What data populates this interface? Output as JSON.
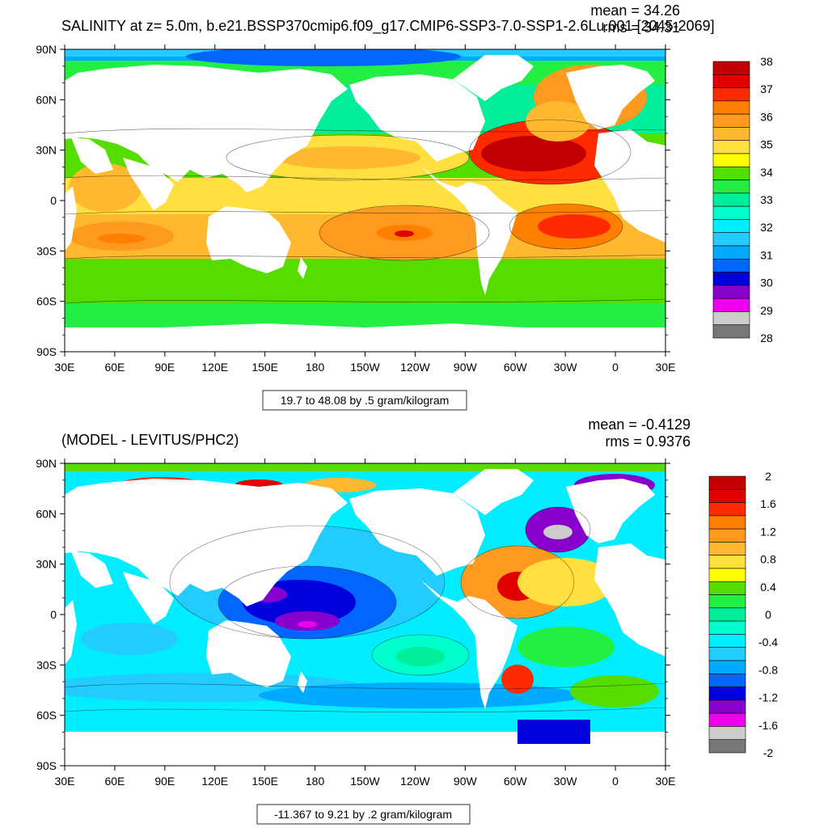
{
  "top_panel": {
    "title": "SALINITY at z=   5.0m, b.e21.BSSP370cmip6.f09_g17.CMIP6-SSP3-7.0-SSP1-2.6Lu.001 [2045-2069]",
    "mean_text": "mean = 34.26",
    "rms_text": "rms = 34.31",
    "contour_info": "19.7 to 48.08 by .5 gram/kilogram",
    "colorbar": {
      "labels": [
        "38",
        "37",
        "36",
        "35",
        "34",
        "33",
        "32",
        "31",
        "30",
        "29",
        "28"
      ],
      "colors": [
        "#c00000",
        "#e00000",
        "#ff2a00",
        "#ff7f00",
        "#ff9a20",
        "#ffb830",
        "#ffe040",
        "#ffff00",
        "#55dd00",
        "#22ee44",
        "#00ee99",
        "#00ffcc",
        "#00eeff",
        "#22ccff",
        "#00aaff",
        "#0066ff",
        "#0000dd",
        "#8800cc",
        "#ee00ee",
        "#cccccc",
        "#777777"
      ]
    }
  },
  "bottom_panel": {
    "title": "(MODEL - LEVITUS/PHC2)",
    "mean_text": "mean = -0.4129",
    "rms_text": "rms = 0.9376",
    "contour_info": "-11.367 to 9.21 by .2 gram/kilogram",
    "colorbar": {
      "labels": [
        "2",
        "1.6",
        "1.2",
        "0.8",
        "0.4",
        "0",
        "-0.4",
        "-0.8",
        "-1.2",
        "-1.6",
        "-2"
      ],
      "colors": [
        "#c00000",
        "#e00000",
        "#ff2a00",
        "#ff7f00",
        "#ff9a20",
        "#ffb830",
        "#ffe040",
        "#ffff00",
        "#55dd00",
        "#22ee44",
        "#00ee99",
        "#00ffcc",
        "#00eeff",
        "#22ccff",
        "#00aaff",
        "#0066ff",
        "#0000dd",
        "#8800cc",
        "#ee00ee",
        "#cccccc",
        "#777777"
      ]
    }
  },
  "axes": {
    "lat_labels": [
      "90N",
      "60N",
      "30N",
      "0",
      "30S",
      "60S",
      "90S"
    ],
    "lon_labels": [
      "30E",
      "60E",
      "90E",
      "120E",
      "150E",
      "180",
      "150W",
      "120W",
      "90W",
      "60W",
      "30W",
      "0",
      "30E"
    ]
  },
  "palette": {
    "ocean_low": "#00aaff",
    "ocean_mid": "#55dd00",
    "ocean_high": "#ff9a20",
    "land": "#ffffff"
  }
}
